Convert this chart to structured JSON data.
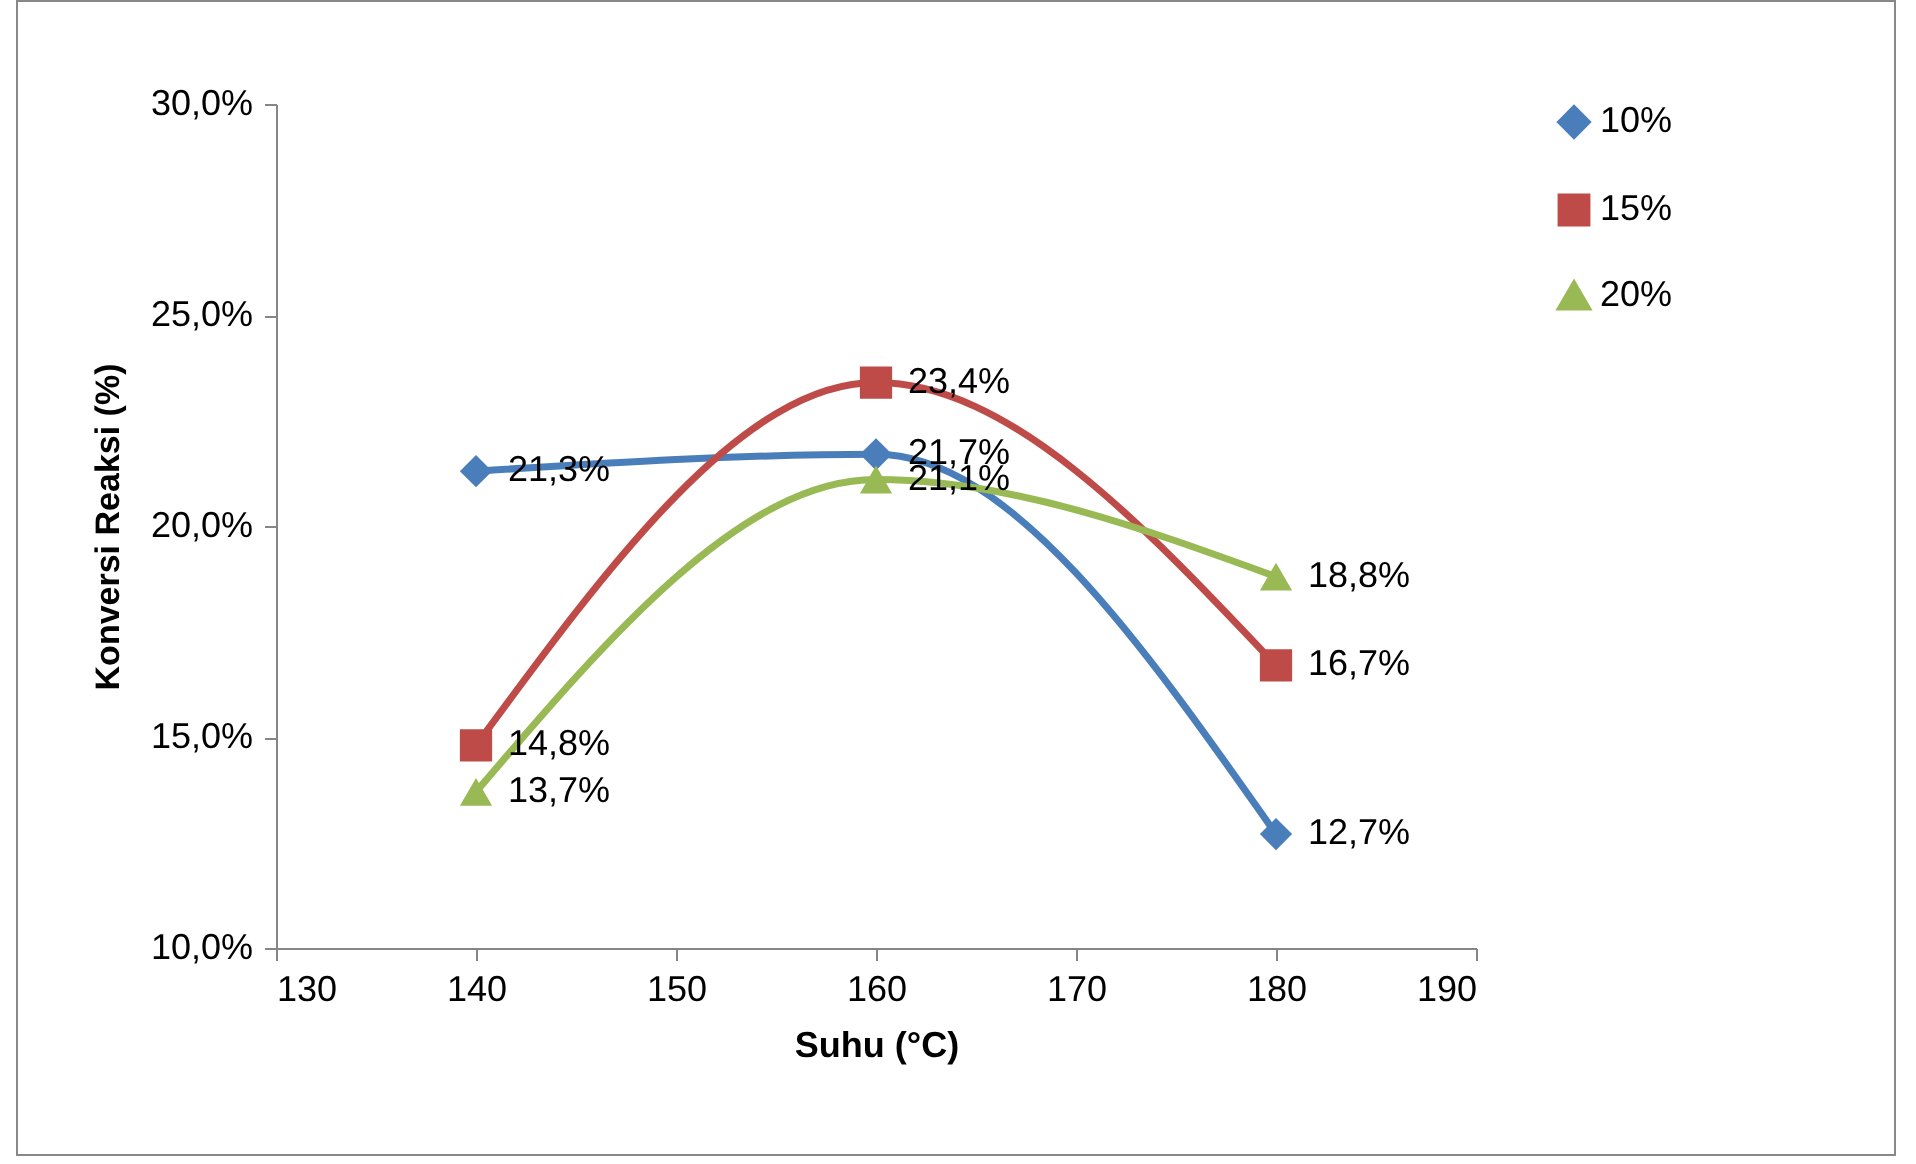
{
  "chart_data": {
    "type": "line",
    "xlabel": "Suhu (°C)",
    "ylabel": "Konversi Reaksi (%)",
    "x": [
      140,
      160,
      180
    ],
    "series": [
      {
        "name": "10%",
        "color": "#4a7ebb",
        "marker": "diamond",
        "values": [
          21.3,
          21.7,
          12.7
        ],
        "value_labels": [
          "21,3%",
          "21,7%",
          "12,7%"
        ]
      },
      {
        "name": "15%",
        "color": "#be4b48",
        "marker": "square",
        "values": [
          14.8,
          23.4,
          16.7
        ],
        "value_labels": [
          "14,8%",
          "23,4%",
          "16,7%"
        ]
      },
      {
        "name": "20%",
        "color": "#98b954",
        "marker": "triangle",
        "values": [
          13.7,
          21.1,
          18.8
        ],
        "value_labels": [
          "13,7%",
          "21,1%",
          "18,8%"
        ]
      }
    ],
    "xlim": [
      130,
      190
    ],
    "xticks": [
      130,
      140,
      150,
      160,
      170,
      180,
      190
    ],
    "ylim": [
      10,
      30
    ],
    "yticks": [
      {
        "value": 10,
        "label": "10,0%"
      },
      {
        "value": 15,
        "label": "15,0%"
      },
      {
        "value": 20,
        "label": "20,0%"
      },
      {
        "value": 25,
        "label": "25,0%"
      },
      {
        "value": 30,
        "label": "30,0%"
      }
    ],
    "grid": false,
    "legend": "right",
    "line_style": "solid"
  }
}
